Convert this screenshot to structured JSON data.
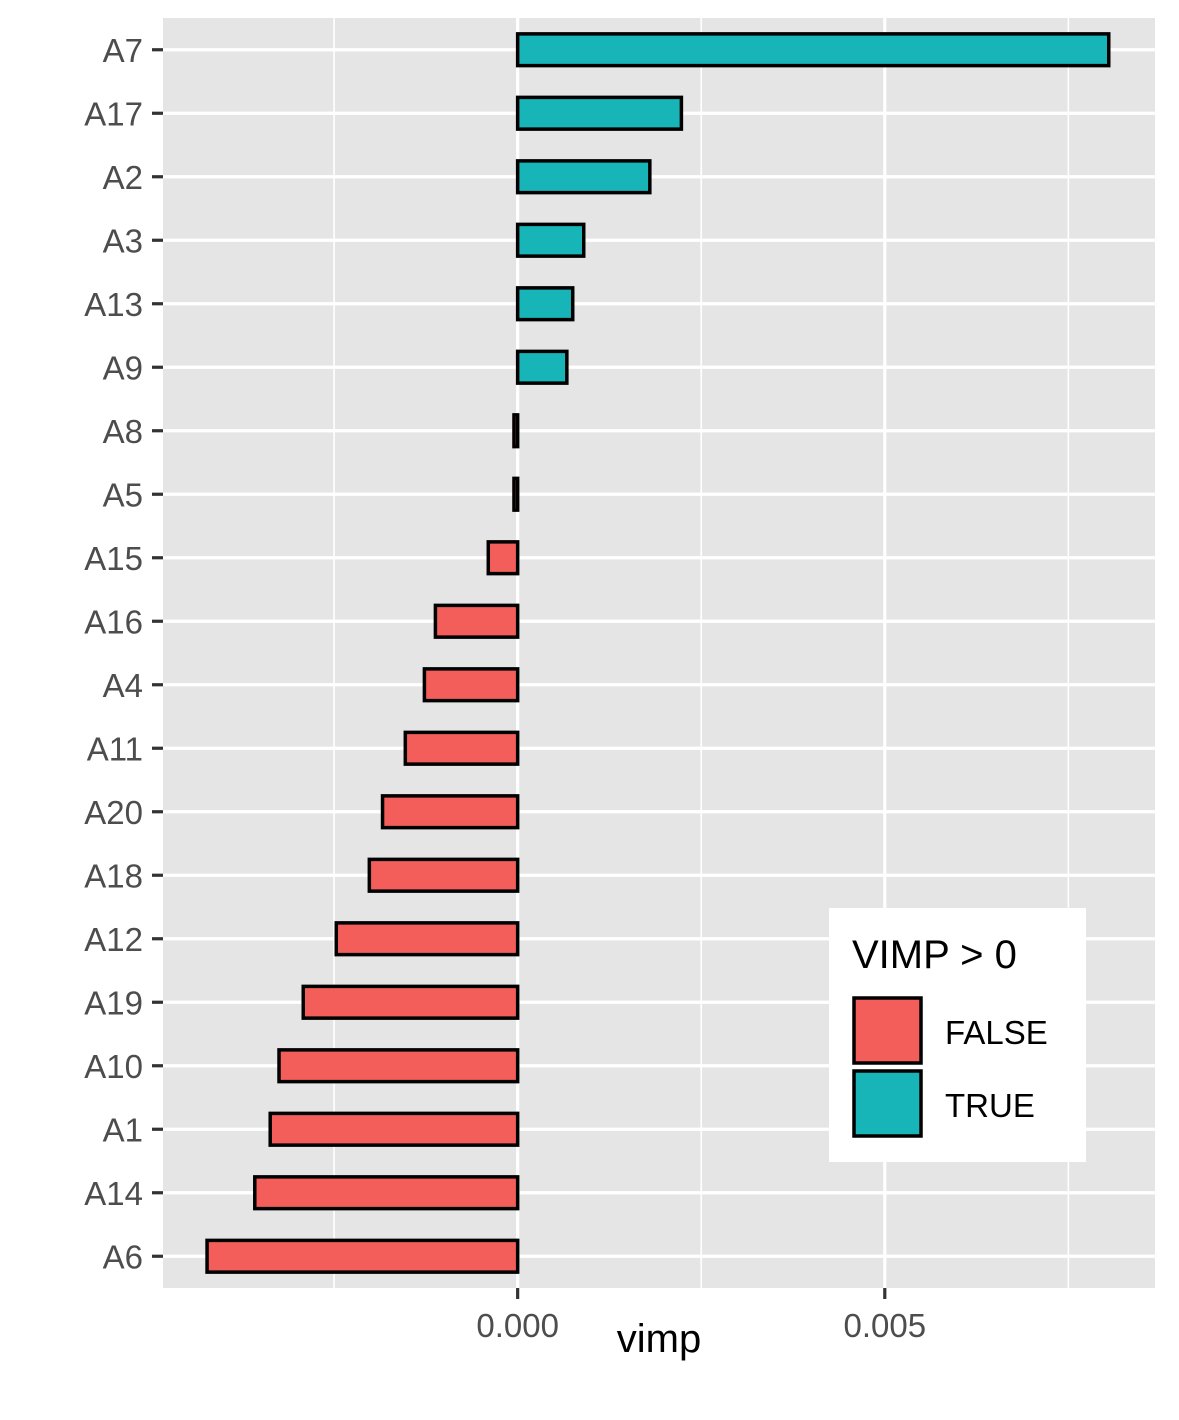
{
  "chart_data": {
    "type": "bar",
    "orientation": "horizontal",
    "xlabel": "vimp",
    "ylabel": "",
    "xlim": [
      -0.00483,
      0.00868
    ],
    "x_ticks": [
      {
        "value": 0.0,
        "label": "0.000"
      },
      {
        "value": 0.005,
        "label": "0.005"
      }
    ],
    "categories": [
      "A7",
      "A17",
      "A2",
      "A3",
      "A13",
      "A9",
      "A8",
      "A5",
      "A15",
      "A16",
      "A4",
      "A11",
      "A20",
      "A18",
      "A12",
      "A19",
      "A10",
      "A1",
      "A14",
      "A6"
    ],
    "values": [
      0.00805,
      0.00223,
      0.0018,
      0.0009,
      0.00075,
      0.00067,
      -5e-05,
      -5e-05,
      -0.0004,
      -0.00112,
      -0.00127,
      -0.00153,
      -0.00184,
      -0.00202,
      -0.00247,
      -0.00292,
      -0.00325,
      -0.00337,
      -0.00358,
      -0.00423
    ],
    "groups": [
      true,
      true,
      true,
      true,
      true,
      true,
      false,
      false,
      false,
      false,
      false,
      false,
      false,
      false,
      false,
      false,
      false,
      false,
      false,
      false
    ],
    "legend": {
      "title": "VIMP > 0",
      "position": "bottom-right inside",
      "entries": [
        {
          "label": "FALSE",
          "color": "#F8766D"
        },
        {
          "label": "TRUE",
          "color": "#00BFC4"
        }
      ]
    },
    "grid": true,
    "colors": {
      "panel_background": "#e5e5e5",
      "grid": "#ffffff",
      "bar_outline": "#000000",
      "false_fill": "#F35E5A",
      "true_fill": "#17B5B8"
    }
  }
}
